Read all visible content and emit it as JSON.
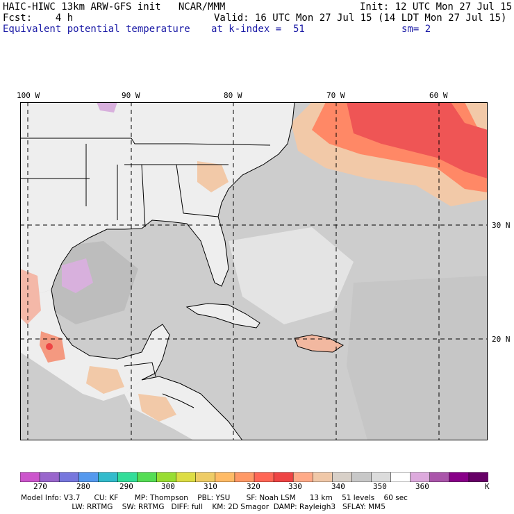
{
  "header": {
    "left_line1": "HAIC-HIWC 13km ARW-GFS init   NCAR/MMM",
    "left_line2": "Fcst:    4 h",
    "field_name": "Equivalent potential temperature",
    "init": "Init: 12 UTC Mon 27 Jul 15",
    "valid": "Valid: 16 UTC Mon 27 Jul 15 (14 LDT Mon 27 Jul 15)",
    "level": "at k-index =  51",
    "smooth": "sm= 2"
  },
  "map": {
    "lon_labels": [
      "100 W",
      "90 W",
      "80 W",
      "70 W",
      "60 W"
    ],
    "lat_labels": [
      "30 N",
      "20 N"
    ],
    "land_color": "#f0f0f0",
    "grid_color": "#000000"
  },
  "colorbar": {
    "colors": [
      "#cc55cc",
      "#9966cc",
      "#7777dd",
      "#5599ee",
      "#33bbcc",
      "#33dd99",
      "#55dd55",
      "#99dd33",
      "#dddd44",
      "#eecc66",
      "#ffbb66",
      "#ff9966",
      "#ff6655",
      "#ee4444",
      "#ffaa88",
      "#f0c8a8",
      "#d8d0c8",
      "#c8c8c8",
      "#dcdcdc",
      "#ffffff",
      "#ddaadd",
      "#aa55aa",
      "#880088",
      "#660066"
    ],
    "labels": [
      "270",
      "280",
      "290",
      "300",
      "310",
      "320",
      "330",
      "340",
      "350",
      "360"
    ],
    "unit": "K"
  },
  "model_info": {
    "line1": "Model Info: V3.7      CU: KF       MP: Thompson    PBL: YSU       SF: Noah LSM      13 km    51 levels    60 sec",
    "line2": "                      LW: RRTMG    SW: RRTMG   DIFF: full    KM: 2D Smagor  DAMP: Rayleigh3   SFLAY: MM5"
  }
}
